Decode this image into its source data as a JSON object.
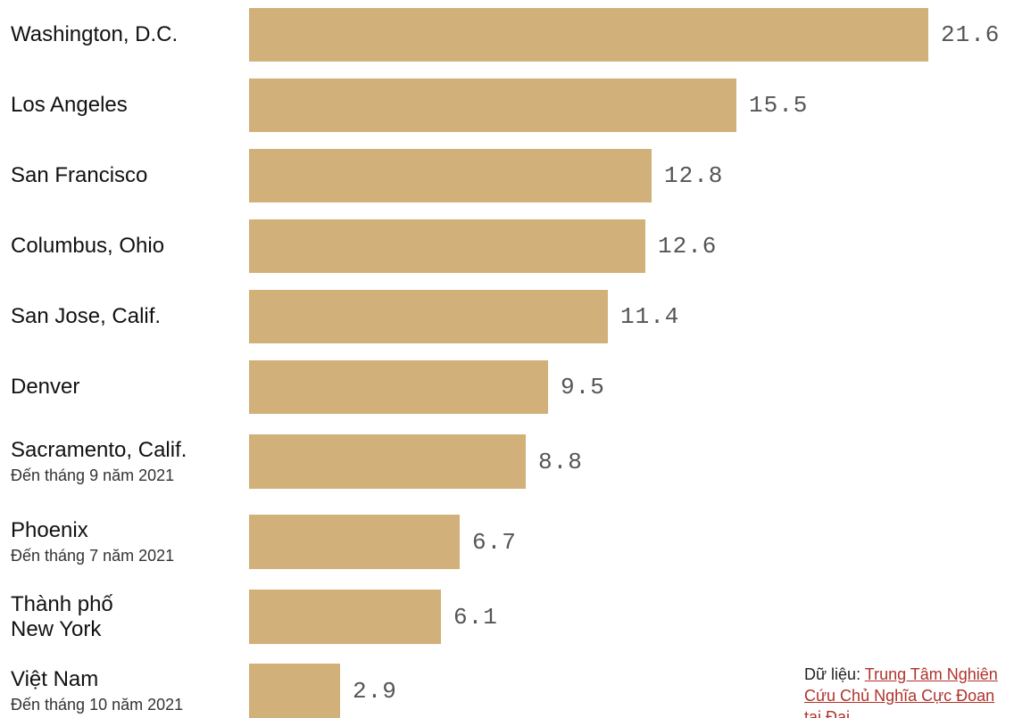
{
  "chart_data": {
    "type": "bar",
    "orientation": "horizontal",
    "title": "",
    "xlabel": "",
    "ylabel": "",
    "categories": [
      "Washington, D.C.",
      "Los Angeles",
      "San Francisco",
      "Columbus, Ohio",
      "San Jose, Calif.",
      "Denver",
      "Sacramento, Calif.",
      "Phoenix",
      "Thành phố\nNew York",
      "Việt Nam"
    ],
    "notes": [
      "",
      "",
      "",
      "",
      "",
      "",
      "Đến tháng 9 năm 2021",
      "Đến tháng 7 năm 2021",
      "",
      "Đến tháng 10 năm 2021"
    ],
    "values": [
      21.6,
      15.5,
      12.8,
      12.6,
      11.4,
      9.5,
      8.8,
      6.7,
      6.1,
      2.9
    ],
    "value_labels": [
      "21.6",
      "15.5",
      "12.8",
      "12.6",
      "11.4",
      "9.5",
      "8.8",
      "6.7",
      "6.1",
      "2.9"
    ],
    "xlim": [
      0,
      21.6
    ],
    "grid": false,
    "bar_color": "#d2b07a"
  },
  "source": {
    "prefix": "Dữ liệu: ",
    "link_text": "Trung Tâm Nghiên Cứu Chủ Nghĩa Cực Đoan tại Đại"
  }
}
